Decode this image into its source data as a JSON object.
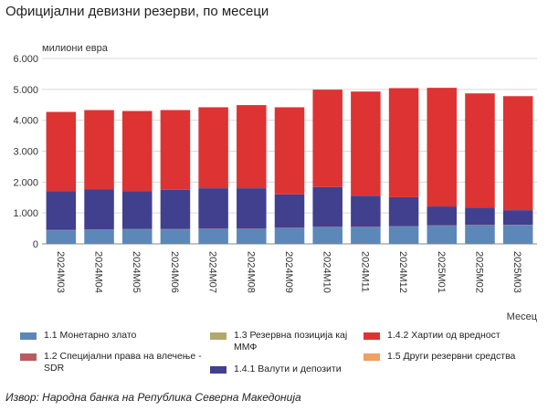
{
  "chart_data": {
    "type": "bar",
    "stacked": true,
    "title": "Официјални девизни резерви, по месеци",
    "ylabel": "милиони евра",
    "xlabel": "Месец",
    "ylim": [
      0,
      6000
    ],
    "yticks": [
      "0",
      "1.000",
      "2.000",
      "3.000",
      "4.000",
      "5.000",
      "6.000"
    ],
    "grid": true,
    "legend_position": "bottom",
    "categories": [
      "2024M03",
      "2024M04",
      "2024M05",
      "2024M06",
      "2024M07",
      "2024M08",
      "2024M09",
      "2024M10",
      "2024M11",
      "2024M12",
      "2025M01",
      "2025M02",
      "2025M03"
    ],
    "series": [
      {
        "name": "1.1 Монетарно злато",
        "color": "#5b88b8",
        "values": [
          440,
          460,
          470,
          470,
          480,
          480,
          510,
          540,
          540,
          560,
          590,
          600,
          610
        ]
      },
      {
        "name": "1.2 Специјални права на влечење - SDR",
        "color": "#b85c5c",
        "values": [
          10,
          10,
          10,
          10,
          10,
          10,
          10,
          10,
          10,
          10,
          10,
          10,
          10
        ]
      },
      {
        "name": "1.3 Резервна позиција кај ММФ",
        "color": "#b3a770",
        "values": [
          0,
          0,
          0,
          0,
          0,
          0,
          0,
          0,
          0,
          0,
          0,
          0,
          0
        ]
      },
      {
        "name": "1.4.1 Валути и депозити",
        "color": "#40408f",
        "values": [
          1260,
          1300,
          1230,
          1270,
          1310,
          1310,
          1080,
          1290,
          1010,
          940,
          610,
          560,
          470
        ]
      },
      {
        "name": "1.4.2 Хартии од вредност",
        "color": "#dd3333",
        "values": [
          2560,
          2560,
          2590,
          2580,
          2620,
          2690,
          2820,
          3150,
          3370,
          3530,
          3840,
          3700,
          3690
        ]
      },
      {
        "name": "1.5 Други резервни средства",
        "color": "#f0a060",
        "values": [
          0,
          0,
          0,
          0,
          0,
          0,
          0,
          0,
          0,
          0,
          0,
          0,
          0
        ]
      }
    ]
  },
  "legend": {
    "items": [
      {
        "label": "1.1 Монетарно злато",
        "color": "#5b88b8"
      },
      {
        "label": "1.3 Резервна позиција кај ММФ",
        "color": "#b3a770"
      },
      {
        "label": "1.4.2 Хартии од вредност",
        "color": "#dd3333"
      },
      {
        "label": "1.2 Специјални права на влечење - SDR",
        "color": "#b85c5c"
      },
      {
        "label": "1.4.1 Валути и депозити",
        "color": "#40408f"
      },
      {
        "label": "1.5 Други резервни средства",
        "color": "#f0a060"
      }
    ]
  },
  "source_note": "Извор: Народна банка на Република Северна Македонија"
}
